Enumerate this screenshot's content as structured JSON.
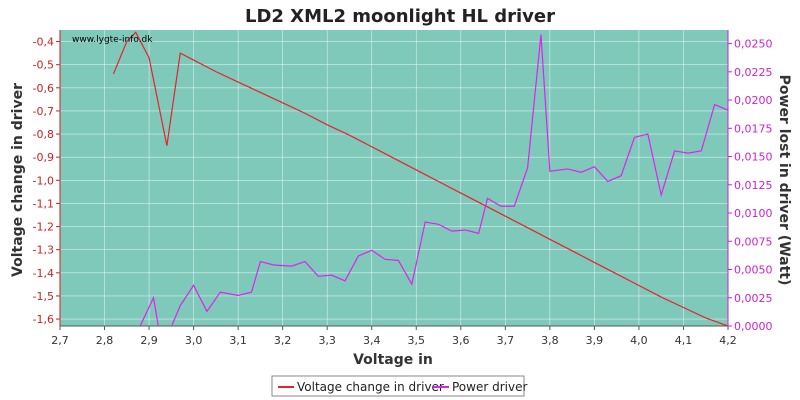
{
  "chart_data": {
    "type": "line",
    "title": "LD2 XML2 moonlight HL driver",
    "xlabel": "Voltage in",
    "ylabel_left": "Voltage change in driver",
    "ylabel_right": "Power lost in driver (Watt)",
    "watermark": "www.lygte-info.dk",
    "xlim": [
      2.7,
      4.2
    ],
    "ylim_left": [
      -1.63,
      -0.35
    ],
    "ylim_right": [
      0,
      0.0262
    ],
    "x_ticks": [
      "2,7",
      "2,8",
      "2,9",
      "3,0",
      "3,1",
      "3,2",
      "3,3",
      "3,4",
      "3,5",
      "3,6",
      "3,7",
      "3,8",
      "3,9",
      "4,0",
      "4,1",
      "4,2"
    ],
    "y_left_ticks": [
      "-0,4",
      "-0,5",
      "-0,6",
      "-0,7",
      "-0,8",
      "-0,9",
      "-1,0",
      "-1,1",
      "-1,2",
      "-1,3",
      "-1,4",
      "-1,5",
      "-1,6"
    ],
    "y_right_ticks": [
      "0,0000",
      "0,0025",
      "0,0050",
      "0,0075",
      "0,0100",
      "0,0125",
      "0,0150",
      "0,0175",
      "0,0200",
      "0,0225",
      "0,0250"
    ],
    "grid": true,
    "legend_placement": "bottom-center",
    "colors": {
      "plot_bg": "#7fc9bb",
      "voltage": "#e8222a",
      "power": "#dd22ee",
      "left_axis": "#cc2222",
      "right_axis": "#cc22cc"
    },
    "series": [
      {
        "name": "Voltage change in driver",
        "axis": "left",
        "x": [
          2.82,
          2.85,
          2.87,
          2.9,
          2.94,
          2.97,
          3.0,
          3.05,
          3.1,
          3.15,
          3.2,
          3.25,
          3.3,
          3.35,
          3.4,
          3.45,
          3.5,
          3.55,
          3.6,
          3.65,
          3.7,
          3.75,
          3.8,
          3.85,
          3.9,
          3.95,
          4.0,
          4.05,
          4.1,
          4.15,
          4.2
        ],
        "values": [
          -0.54,
          -0.4,
          -0.36,
          -0.47,
          -0.85,
          -0.45,
          -0.48,
          -0.53,
          -0.575,
          -0.62,
          -0.665,
          -0.71,
          -0.76,
          -0.805,
          -0.855,
          -0.905,
          -0.955,
          -1.005,
          -1.055,
          -1.105,
          -1.155,
          -1.205,
          -1.255,
          -1.305,
          -1.355,
          -1.405,
          -1.455,
          -1.505,
          -1.55,
          -1.595,
          -1.63
        ]
      },
      {
        "name": "Power driver",
        "axis": "right",
        "x": [
          2.88,
          2.91,
          2.925,
          2.94,
          2.97,
          3.0,
          3.03,
          3.06,
          3.1,
          3.13,
          3.15,
          3.18,
          3.22,
          3.25,
          3.28,
          3.31,
          3.34,
          3.37,
          3.4,
          3.43,
          3.46,
          3.49,
          3.52,
          3.55,
          3.58,
          3.61,
          3.64,
          3.66,
          3.69,
          3.72,
          3.75,
          3.78,
          3.8,
          3.84,
          3.87,
          3.9,
          3.93,
          3.96,
          3.99,
          4.02,
          4.05,
          4.08,
          4.11,
          4.14,
          4.17,
          4.2
        ],
        "values": [
          0.0,
          0.0025,
          -0.001,
          -0.001,
          0.0018,
          0.0036,
          0.0013,
          0.003,
          0.0027,
          0.003,
          0.0057,
          0.0054,
          0.0053,
          0.0057,
          0.0044,
          0.0045,
          0.004,
          0.0062,
          0.0067,
          0.0059,
          0.0058,
          0.0037,
          0.0092,
          0.009,
          0.0084,
          0.0085,
          0.0082,
          0.0113,
          0.0106,
          0.0106,
          0.014,
          0.0258,
          0.0137,
          0.0139,
          0.0136,
          0.0141,
          0.0128,
          0.0133,
          0.0167,
          0.017,
          0.0116,
          0.0155,
          0.0153,
          0.0155,
          0.0196,
          0.0191
        ]
      }
    ]
  }
}
